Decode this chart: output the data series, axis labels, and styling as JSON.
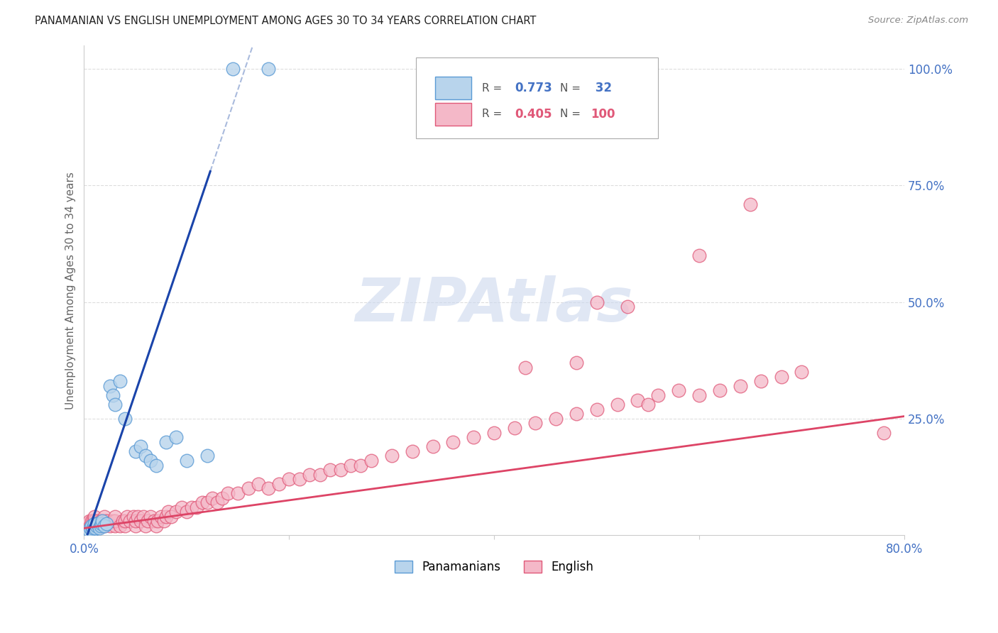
{
  "title": "PANAMANIAN VS ENGLISH UNEMPLOYMENT AMONG AGES 30 TO 34 YEARS CORRELATION CHART",
  "source": "Source: ZipAtlas.com",
  "ylabel": "Unemployment Among Ages 30 to 34 years",
  "xlim": [
    0.0,
    0.8
  ],
  "ylim": [
    0.0,
    1.05
  ],
  "panamanian_color": "#b8d4ec",
  "panamanian_edge": "#5b9bd5",
  "english_color": "#f4b8c8",
  "english_edge": "#e05878",
  "blue_line_color": "#1a44aa",
  "pink_line_color": "#dd4466",
  "blue_dashed_color": "#aabbdd",
  "axis_color": "#4472c4",
  "grid_color": "#dddddd",
  "watermark": "ZIPAtlas",
  "watermark_color": "#ccd8ee",
  "title_color": "#222222",
  "source_color": "#888888",
  "legend_text_color": "#555555",
  "legend_blue_val_color": "#4472c4",
  "legend_pink_val_color": "#e05878",
  "pan_slope": 6.5,
  "pan_intercept": -0.02,
  "eng_slope": 0.3,
  "eng_intercept": 0.015,
  "panamanian_x": [
    0.005,
    0.006,
    0.007,
    0.008,
    0.009,
    0.01,
    0.01,
    0.011,
    0.012,
    0.013,
    0.015,
    0.016,
    0.017,
    0.018,
    0.02,
    0.022,
    0.025,
    0.028,
    0.03,
    0.035,
    0.04,
    0.05,
    0.055,
    0.06,
    0.065,
    0.07,
    0.08,
    0.09,
    0.1,
    0.12,
    0.145,
    0.18
  ],
  "panamanian_y": [
    0.01,
    0.015,
    0.02,
    0.01,
    0.015,
    0.02,
    0.025,
    0.015,
    0.02,
    0.025,
    0.015,
    0.02,
    0.025,
    0.03,
    0.02,
    0.025,
    0.32,
    0.3,
    0.28,
    0.33,
    0.25,
    0.18,
    0.19,
    0.17,
    0.16,
    0.15,
    0.2,
    0.21,
    0.16,
    0.17,
    1.0,
    1.0
  ],
  "english_x": [
    0.005,
    0.006,
    0.007,
    0.008,
    0.009,
    0.01,
    0.01,
    0.01,
    0.012,
    0.013,
    0.015,
    0.016,
    0.017,
    0.018,
    0.02,
    0.02,
    0.02,
    0.022,
    0.025,
    0.028,
    0.03,
    0.03,
    0.03,
    0.035,
    0.038,
    0.04,
    0.04,
    0.042,
    0.045,
    0.048,
    0.05,
    0.05,
    0.052,
    0.055,
    0.058,
    0.06,
    0.062,
    0.065,
    0.068,
    0.07,
    0.072,
    0.075,
    0.078,
    0.08,
    0.082,
    0.085,
    0.09,
    0.095,
    0.1,
    0.105,
    0.11,
    0.115,
    0.12,
    0.125,
    0.13,
    0.135,
    0.14,
    0.15,
    0.16,
    0.17,
    0.18,
    0.19,
    0.2,
    0.21,
    0.22,
    0.23,
    0.24,
    0.25,
    0.26,
    0.27,
    0.28,
    0.3,
    0.32,
    0.34,
    0.36,
    0.38,
    0.4,
    0.42,
    0.44,
    0.46,
    0.48,
    0.5,
    0.52,
    0.54,
    0.56,
    0.58,
    0.6,
    0.62,
    0.64,
    0.66,
    0.68,
    0.7,
    0.43,
    0.5,
    0.55,
    0.48,
    0.53,
    0.6,
    0.65,
    0.78
  ],
  "english_y": [
    0.03,
    0.02,
    0.03,
    0.02,
    0.03,
    0.02,
    0.03,
    0.04,
    0.02,
    0.03,
    0.02,
    0.03,
    0.02,
    0.03,
    0.02,
    0.03,
    0.04,
    0.03,
    0.02,
    0.03,
    0.02,
    0.03,
    0.04,
    0.02,
    0.03,
    0.02,
    0.03,
    0.04,
    0.03,
    0.04,
    0.02,
    0.03,
    0.04,
    0.03,
    0.04,
    0.02,
    0.03,
    0.04,
    0.03,
    0.02,
    0.03,
    0.04,
    0.03,
    0.04,
    0.05,
    0.04,
    0.05,
    0.06,
    0.05,
    0.06,
    0.06,
    0.07,
    0.07,
    0.08,
    0.07,
    0.08,
    0.09,
    0.09,
    0.1,
    0.11,
    0.1,
    0.11,
    0.12,
    0.12,
    0.13,
    0.13,
    0.14,
    0.14,
    0.15,
    0.15,
    0.16,
    0.17,
    0.18,
    0.19,
    0.2,
    0.21,
    0.22,
    0.23,
    0.24,
    0.25,
    0.26,
    0.27,
    0.28,
    0.29,
    0.3,
    0.31,
    0.3,
    0.31,
    0.32,
    0.33,
    0.34,
    0.35,
    0.36,
    0.5,
    0.28,
    0.37,
    0.49,
    0.6,
    0.71,
    0.22
  ]
}
